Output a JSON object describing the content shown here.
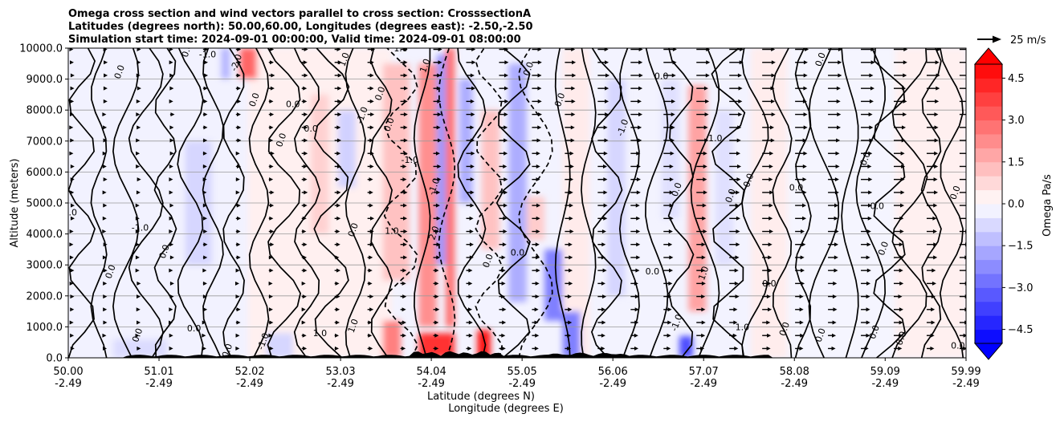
{
  "chart_data": {
    "type": "heatmap",
    "title_lines": [
      "Omega cross section and wind vectors parallel to cross section: CrosssectionA",
      "Latitudes (degrees north): 50.00,60.00, Longitudes (degrees east): -2.50,-2.50",
      "Simulation start time: 2024-09-01 00:00:00, Valid time: 2024-09-01 08:00:00"
    ],
    "ylabel": "Altitude (meters)",
    "xlabel_lat": "Latitude (degrees N)",
    "xlabel_lon": "Longitude (degrees E)",
    "ylim": [
      0,
      10000
    ],
    "y_ticks": [
      0,
      1000,
      2000,
      3000,
      4000,
      5000,
      6000,
      7000,
      8000,
      9000,
      10000
    ],
    "y_tick_labels": [
      "0.0",
      "1000.0",
      "2000.0",
      "3000.0",
      "4000.0",
      "5000.0",
      "6000.0",
      "7000.0",
      "8000.0",
      "9000.0",
      "10000.0"
    ],
    "xlim": [
      50.0,
      59.99
    ],
    "x_ticks": [
      50.0,
      51.01,
      52.02,
      53.03,
      54.04,
      55.05,
      56.06,
      57.07,
      58.08,
      59.09,
      59.99
    ],
    "x_tick_lat_labels": [
      "50.00",
      "51.01",
      "52.02",
      "53.03",
      "54.04",
      "55.05",
      "56.06",
      "57.07",
      "58.08",
      "59.09",
      "59.99"
    ],
    "x_tick_lon_labels": [
      "-2.49",
      "-2.49",
      "-2.49",
      "-2.49",
      "-2.49",
      "-2.49",
      "-2.49",
      "-2.49",
      "-2.49",
      "-2.49",
      "-2.49"
    ],
    "colorbar": {
      "label": "Omega Pa/s",
      "range": [
        -5,
        5
      ],
      "ticks": [
        4.5,
        3.0,
        1.5,
        0.0,
        -1.5,
        -3.0,
        -4.5
      ],
      "tick_labels": [
        "4.5",
        "3.0",
        "1.5",
        "0.0",
        "−1.5",
        "−3.0",
        "−4.5"
      ],
      "levels": 20,
      "extend": "both"
    },
    "quiver_key": {
      "label": "25 m/s",
      "speed": 25
    },
    "contour_labels": [
      {
        "lat": 50.02,
        "alt": 4600,
        "text": "0.0"
      },
      {
        "lat": 50.6,
        "alt": 9200,
        "text": "0.0"
      },
      {
        "lat": 50.5,
        "alt": 2750,
        "text": "0.0"
      },
      {
        "lat": 50.8,
        "alt": 4100,
        "text": "-1.0"
      },
      {
        "lat": 51.1,
        "alt": 3400,
        "text": "0.0"
      },
      {
        "lat": 51.35,
        "alt": 9900,
        "text": "0.0"
      },
      {
        "lat": 51.55,
        "alt": 9700,
        "text": "-1.0"
      },
      {
        "lat": 51.9,
        "alt": 9500,
        "text": "-2.0"
      },
      {
        "lat": 52.1,
        "alt": 8300,
        "text": "0.0"
      },
      {
        "lat": 52.5,
        "alt": 8100,
        "text": "0.0"
      },
      {
        "lat": 53.1,
        "alt": 9600,
        "text": "1.0"
      },
      {
        "lat": 53.5,
        "alt": 8500,
        "text": "0.0"
      },
      {
        "lat": 52.7,
        "alt": 7300,
        "text": "0.0"
      },
      {
        "lat": 53.3,
        "alt": 7800,
        "text": "-1.0"
      },
      {
        "lat": 52.4,
        "alt": 7000,
        "text": "0.0"
      },
      {
        "lat": 53.7,
        "alt": 9900,
        "text": "1.0"
      },
      {
        "lat": 54.0,
        "alt": 9400,
        "text": "1.0"
      },
      {
        "lat": 53.6,
        "alt": 7500,
        "text": "0.0"
      },
      {
        "lat": 53.8,
        "alt": 6300,
        "text": "-1.0"
      },
      {
        "lat": 54.1,
        "alt": 5500,
        "text": "-1.0"
      },
      {
        "lat": 53.2,
        "alt": 4100,
        "text": "0.0"
      },
      {
        "lat": 53.6,
        "alt": 4000,
        "text": "1.0"
      },
      {
        "lat": 54.1,
        "alt": 4000,
        "text": "2.0"
      },
      {
        "lat": 54.7,
        "alt": 3100,
        "text": "0.0"
      },
      {
        "lat": 55.0,
        "alt": 3300,
        "text": "0.0"
      },
      {
        "lat": 55.5,
        "alt": 8300,
        "text": "0.0"
      },
      {
        "lat": 55.15,
        "alt": 9300,
        "text": "0.0"
      },
      {
        "lat": 56.6,
        "alt": 9000,
        "text": "0.0"
      },
      {
        "lat": 56.2,
        "alt": 7400,
        "text": "-1.0"
      },
      {
        "lat": 56.8,
        "alt": 5400,
        "text": "0.0"
      },
      {
        "lat": 57.2,
        "alt": 7000,
        "text": "1.0"
      },
      {
        "lat": 57.6,
        "alt": 5700,
        "text": "0.0"
      },
      {
        "lat": 57.4,
        "alt": 5200,
        "text": "0.0"
      },
      {
        "lat": 58.1,
        "alt": 5400,
        "text": "0.0"
      },
      {
        "lat": 58.4,
        "alt": 9600,
        "text": "0.0"
      },
      {
        "lat": 58.9,
        "alt": 6400,
        "text": "0.0"
      },
      {
        "lat": 59.0,
        "alt": 4800,
        "text": "0.0"
      },
      {
        "lat": 59.1,
        "alt": 3500,
        "text": "0.0"
      },
      {
        "lat": 59.9,
        "alt": 5300,
        "text": "0.0"
      },
      {
        "lat": 57.8,
        "alt": 2300,
        "text": "0.0"
      },
      {
        "lat": 56.8,
        "alt": 1100,
        "text": "-1.0"
      },
      {
        "lat": 57.1,
        "alt": 2700,
        "text": "1.0"
      },
      {
        "lat": 56.5,
        "alt": 2700,
        "text": "0.0"
      },
      {
        "lat": 58.0,
        "alt": 900,
        "text": "0.0"
      },
      {
        "lat": 58.4,
        "alt": 700,
        "text": "0.0"
      },
      {
        "lat": 57.5,
        "alt": 900,
        "text": "1.0"
      },
      {
        "lat": 59.0,
        "alt": 800,
        "text": "0.0"
      },
      {
        "lat": 59.3,
        "alt": 600,
        "text": "0.0"
      },
      {
        "lat": 59.9,
        "alt": 300,
        "text": "0.0"
      },
      {
        "lat": 51.8,
        "alt": 200,
        "text": "0.0"
      },
      {
        "lat": 52.2,
        "alt": 500,
        "text": "-1.0"
      },
      {
        "lat": 52.8,
        "alt": 700,
        "text": "1.0"
      },
      {
        "lat": 53.2,
        "alt": 1000,
        "text": "1.0"
      },
      {
        "lat": 50.8,
        "alt": 700,
        "text": "0.0"
      },
      {
        "lat": 51.4,
        "alt": 850,
        "text": "0.0"
      }
    ]
  }
}
